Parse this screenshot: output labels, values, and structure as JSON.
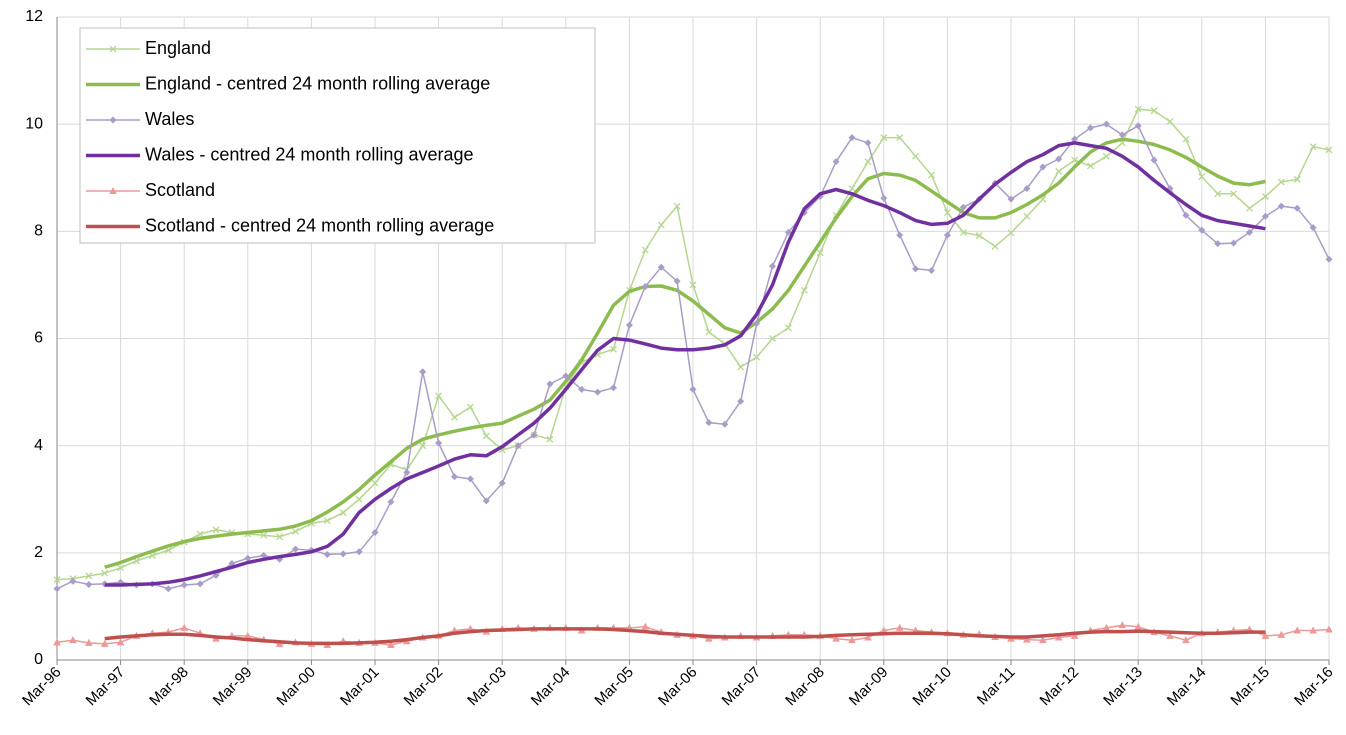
{
  "chart_data": {
    "type": "line",
    "categories": [
      "Mar-96",
      null,
      null,
      null,
      "Mar-97",
      null,
      null,
      null,
      "Mar-98",
      null,
      null,
      null,
      "Mar-99",
      null,
      null,
      null,
      "Mar-00",
      null,
      null,
      null,
      "Mar-01",
      null,
      null,
      null,
      "Mar-02",
      null,
      null,
      null,
      "Mar-03",
      null,
      null,
      null,
      "Mar-04",
      null,
      null,
      null,
      "Mar-05",
      null,
      null,
      null,
      "Mar-06",
      null,
      null,
      null,
      "Mar-07",
      null,
      null,
      null,
      "Mar-08",
      null,
      null,
      null,
      "Mar-09",
      null,
      null,
      null,
      "Mar-10",
      null,
      null,
      null,
      "Mar-11",
      null,
      null,
      null,
      "Mar-12",
      null,
      null,
      null,
      "Mar-13",
      null,
      null,
      null,
      "Mar-14",
      null,
      null,
      null,
      "Mar-15",
      null,
      null,
      null,
      "Mar-16"
    ],
    "ylim": [
      0,
      12
    ],
    "yticks": [
      0,
      2,
      4,
      6,
      8,
      10,
      12
    ],
    "grid": true,
    "legend": "top-left",
    "series": [
      {
        "name": "England",
        "color": "#b5d68f",
        "marker": "x",
        "width": 1.5,
        "values": [
          1.5,
          1.52,
          1.57,
          1.62,
          1.72,
          1.85,
          1.95,
          2.05,
          2.2,
          2.35,
          2.43,
          2.38,
          2.35,
          2.33,
          2.3,
          2.4,
          2.55,
          2.6,
          2.75,
          3.0,
          3.3,
          3.65,
          3.55,
          4.0,
          4.93,
          4.53,
          4.72,
          4.18,
          3.92,
          4.0,
          4.2,
          4.12,
          5.1,
          5.55,
          5.7,
          5.8,
          6.9,
          7.65,
          8.12,
          8.47,
          7.0,
          6.12,
          5.9,
          5.47,
          5.65,
          6.0,
          6.2,
          6.9,
          7.6,
          8.3,
          8.8,
          9.3,
          9.75,
          9.75,
          9.4,
          9.05,
          8.35,
          7.98,
          7.92,
          7.72,
          7.97,
          8.28,
          8.6,
          9.12,
          9.33,
          9.22,
          9.4,
          9.65,
          10.28,
          10.25,
          10.05,
          9.72,
          9.02,
          8.7,
          8.7,
          8.43,
          8.65,
          8.92,
          8.97,
          9.58,
          9.52
        ]
      },
      {
        "name": "England - centred 24 month rolling average",
        "color": "#8cbb4e",
        "marker": "none",
        "width": 3.5,
        "values": [
          null,
          null,
          null,
          1.73,
          1.82,
          1.93,
          2.03,
          2.13,
          2.21,
          2.27,
          2.31,
          2.35,
          2.38,
          2.41,
          2.44,
          2.5,
          2.6,
          2.76,
          2.95,
          3.18,
          3.45,
          3.7,
          3.95,
          4.12,
          4.2,
          4.27,
          4.33,
          4.38,
          4.42,
          4.55,
          4.68,
          4.85,
          5.2,
          5.6,
          6.1,
          6.62,
          6.88,
          6.97,
          6.98,
          6.9,
          6.7,
          6.45,
          6.2,
          6.1,
          6.3,
          6.55,
          6.9,
          7.35,
          7.8,
          8.25,
          8.65,
          8.98,
          9.08,
          9.05,
          8.95,
          8.75,
          8.55,
          8.35,
          8.25,
          8.25,
          8.35,
          8.5,
          8.68,
          8.9,
          9.2,
          9.48,
          9.65,
          9.72,
          9.68,
          9.62,
          9.52,
          9.38,
          9.2,
          9.03,
          8.9,
          8.87,
          8.93,
          null,
          null,
          null,
          null
        ]
      },
      {
        "name": "Wales",
        "color": "#a99cc8",
        "marker": "diamond",
        "width": 1.5,
        "values": [
          1.33,
          1.47,
          1.41,
          1.42,
          1.45,
          1.4,
          1.42,
          1.33,
          1.4,
          1.42,
          1.58,
          1.8,
          1.9,
          1.95,
          1.88,
          2.07,
          2.05,
          1.97,
          1.98,
          2.02,
          2.38,
          2.95,
          3.5,
          5.38,
          4.05,
          3.42,
          3.38,
          2.97,
          3.3,
          4.0,
          4.2,
          5.15,
          5.3,
          5.05,
          5.0,
          5.08,
          6.25,
          6.97,
          7.33,
          7.07,
          5.05,
          4.43,
          4.4,
          4.83,
          6.28,
          7.35,
          7.98,
          8.35,
          8.65,
          9.3,
          9.75,
          9.65,
          8.62,
          7.93,
          7.3,
          7.27,
          7.93,
          8.45,
          8.6,
          8.9,
          8.6,
          8.8,
          9.2,
          9.35,
          9.72,
          9.93,
          10.0,
          9.8,
          9.97,
          9.33,
          8.8,
          8.3,
          8.02,
          7.77,
          7.78,
          7.98,
          8.28,
          8.47,
          8.43,
          8.07,
          7.48
        ]
      },
      {
        "name": "Wales - centred 24 month rolling average",
        "color": "#7030a0",
        "marker": "none",
        "width": 3.5,
        "values": [
          null,
          null,
          null,
          1.4,
          1.4,
          1.41,
          1.42,
          1.45,
          1.5,
          1.57,
          1.65,
          1.73,
          1.82,
          1.88,
          1.93,
          1.97,
          2.02,
          2.12,
          2.35,
          2.75,
          3.0,
          3.2,
          3.38,
          3.5,
          3.62,
          3.75,
          3.83,
          3.81,
          3.98,
          4.2,
          4.42,
          4.7,
          5.05,
          5.42,
          5.78,
          6.0,
          5.97,
          5.9,
          5.82,
          5.79,
          5.79,
          5.82,
          5.88,
          6.05,
          6.45,
          7.0,
          7.8,
          8.42,
          8.7,
          8.78,
          8.7,
          8.58,
          8.48,
          8.35,
          8.2,
          8.13,
          8.15,
          8.3,
          8.6,
          8.88,
          9.1,
          9.3,
          9.43,
          9.6,
          9.65,
          9.6,
          9.55,
          9.4,
          9.2,
          8.95,
          8.72,
          8.5,
          8.3,
          8.2,
          8.15,
          8.1,
          8.05,
          null,
          null,
          null,
          null
        ]
      },
      {
        "name": "Scotland",
        "color": "#e99a98",
        "marker": "triangle",
        "width": 1.5,
        "values": [
          0.33,
          0.37,
          0.32,
          0.3,
          0.33,
          0.45,
          0.5,
          0.52,
          0.6,
          0.5,
          0.4,
          0.45,
          0.45,
          0.38,
          0.3,
          0.33,
          0.3,
          0.28,
          0.35,
          0.32,
          0.32,
          0.28,
          0.35,
          0.42,
          0.45,
          0.55,
          0.58,
          0.53,
          0.58,
          0.6,
          0.58,
          0.6,
          0.6,
          0.55,
          0.6,
          0.6,
          0.6,
          0.62,
          0.52,
          0.47,
          0.45,
          0.4,
          0.42,
          0.45,
          0.42,
          0.45,
          0.47,
          0.47,
          0.45,
          0.4,
          0.37,
          0.42,
          0.55,
          0.6,
          0.55,
          0.52,
          0.5,
          0.47,
          0.48,
          0.43,
          0.4,
          0.38,
          0.37,
          0.42,
          0.45,
          0.55,
          0.6,
          0.65,
          0.62,
          0.52,
          0.45,
          0.37,
          0.5,
          0.52,
          0.55,
          0.57,
          0.45,
          0.47,
          0.55,
          0.55,
          0.57
        ]
      },
      {
        "name": "Scotland - centred 24 month rolling average",
        "color": "#c0504d",
        "marker": "none",
        "width": 3.5,
        "values": [
          null,
          null,
          null,
          0.4,
          0.43,
          0.45,
          0.47,
          0.48,
          0.48,
          0.46,
          0.43,
          0.41,
          0.38,
          0.36,
          0.34,
          0.32,
          0.31,
          0.31,
          0.31,
          0.32,
          0.33,
          0.35,
          0.38,
          0.42,
          0.45,
          0.5,
          0.53,
          0.55,
          0.56,
          0.57,
          0.58,
          0.58,
          0.58,
          0.58,
          0.58,
          0.57,
          0.55,
          0.53,
          0.5,
          0.48,
          0.46,
          0.44,
          0.43,
          0.43,
          0.43,
          0.43,
          0.43,
          0.43,
          0.44,
          0.46,
          0.47,
          0.48,
          0.49,
          0.5,
          0.5,
          0.5,
          0.49,
          0.47,
          0.45,
          0.44,
          0.43,
          0.43,
          0.45,
          0.47,
          0.5,
          0.52,
          0.53,
          0.53,
          0.54,
          0.53,
          0.52,
          0.51,
          0.5,
          0.5,
          0.51,
          0.52,
          0.52,
          null,
          null,
          null,
          null
        ]
      }
    ]
  }
}
